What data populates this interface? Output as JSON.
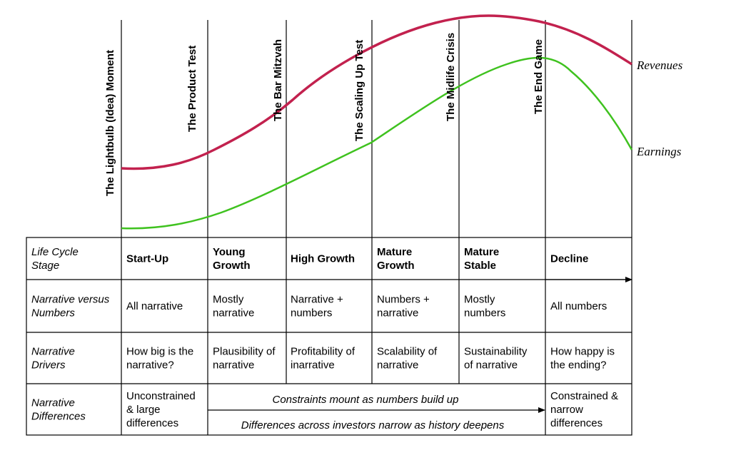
{
  "stage_moments": [
    "The Lightbulb (Idea) Moment",
    "The Product Test",
    "The Bar Mitzvah",
    "The Scaling Up Test",
    "The Midlife Crisis",
    "The End Game"
  ],
  "curves": {
    "revenues": {
      "label": "Revenues",
      "color": "#c2214e"
    },
    "earnings": {
      "label": "Earnings",
      "color": "#3fc21f"
    }
  },
  "table": {
    "rows": [
      {
        "header": [
          "Life Cycle",
          "Stage"
        ],
        "cells": [
          [
            "Start-Up"
          ],
          [
            "Young",
            "Growth"
          ],
          [
            "High Growth"
          ],
          [
            "Mature",
            "Growth"
          ],
          [
            "Mature",
            "Stable"
          ],
          [
            "Decline"
          ]
        ]
      },
      {
        "header": [
          "Narrative versus",
          "Numbers"
        ],
        "cells": [
          [
            "All narrative"
          ],
          [
            "Mostly",
            "narrative"
          ],
          [
            "Narrative +",
            "numbers"
          ],
          [
            "Numbers +",
            "narrative"
          ],
          [
            "Mostly",
            "numbers"
          ],
          [
            "All numbers"
          ]
        ]
      },
      {
        "header": [
          "Narrative",
          "Drivers"
        ],
        "cells": [
          [
            "How big is the",
            "narrative?"
          ],
          [
            "Plausibility of",
            "narrative"
          ],
          [
            "Profitability of",
            "inarrative"
          ],
          [
            "Scalability of",
            "narrative"
          ],
          [
            "Sustainability",
            "of narrative"
          ],
          [
            "How happy is",
            "the ending?"
          ]
        ]
      },
      {
        "header": [
          "Narrative",
          "Differences"
        ],
        "first": [
          "Unconstrained",
          "& large",
          "differences"
        ],
        "middle_top": "Constraints mount as numbers build up",
        "middle_bottom": "Differences across investors narrow as history deepens",
        "last": [
          "Constrained &",
          "narrow",
          "differences"
        ]
      }
    ]
  }
}
